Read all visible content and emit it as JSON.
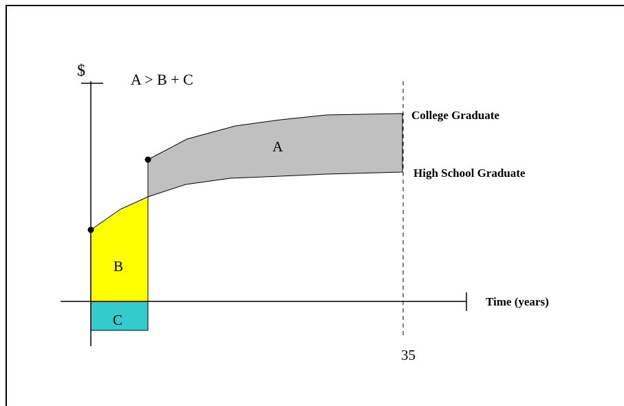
{
  "diagram": {
    "y_axis_label": "$",
    "inequality": "A > B + C",
    "x_axis_label": "Time (years)",
    "x_mark_label": "35",
    "college_label": "College Graduate",
    "highschool_label": "High School Graduate",
    "region_a": {
      "label": "A",
      "color": "#c0c0c0"
    },
    "region_b": {
      "label": "B",
      "color": "#ffff00"
    },
    "region_c": {
      "label": "C",
      "color": "#33cccc"
    },
    "line_color": "#000000"
  }
}
